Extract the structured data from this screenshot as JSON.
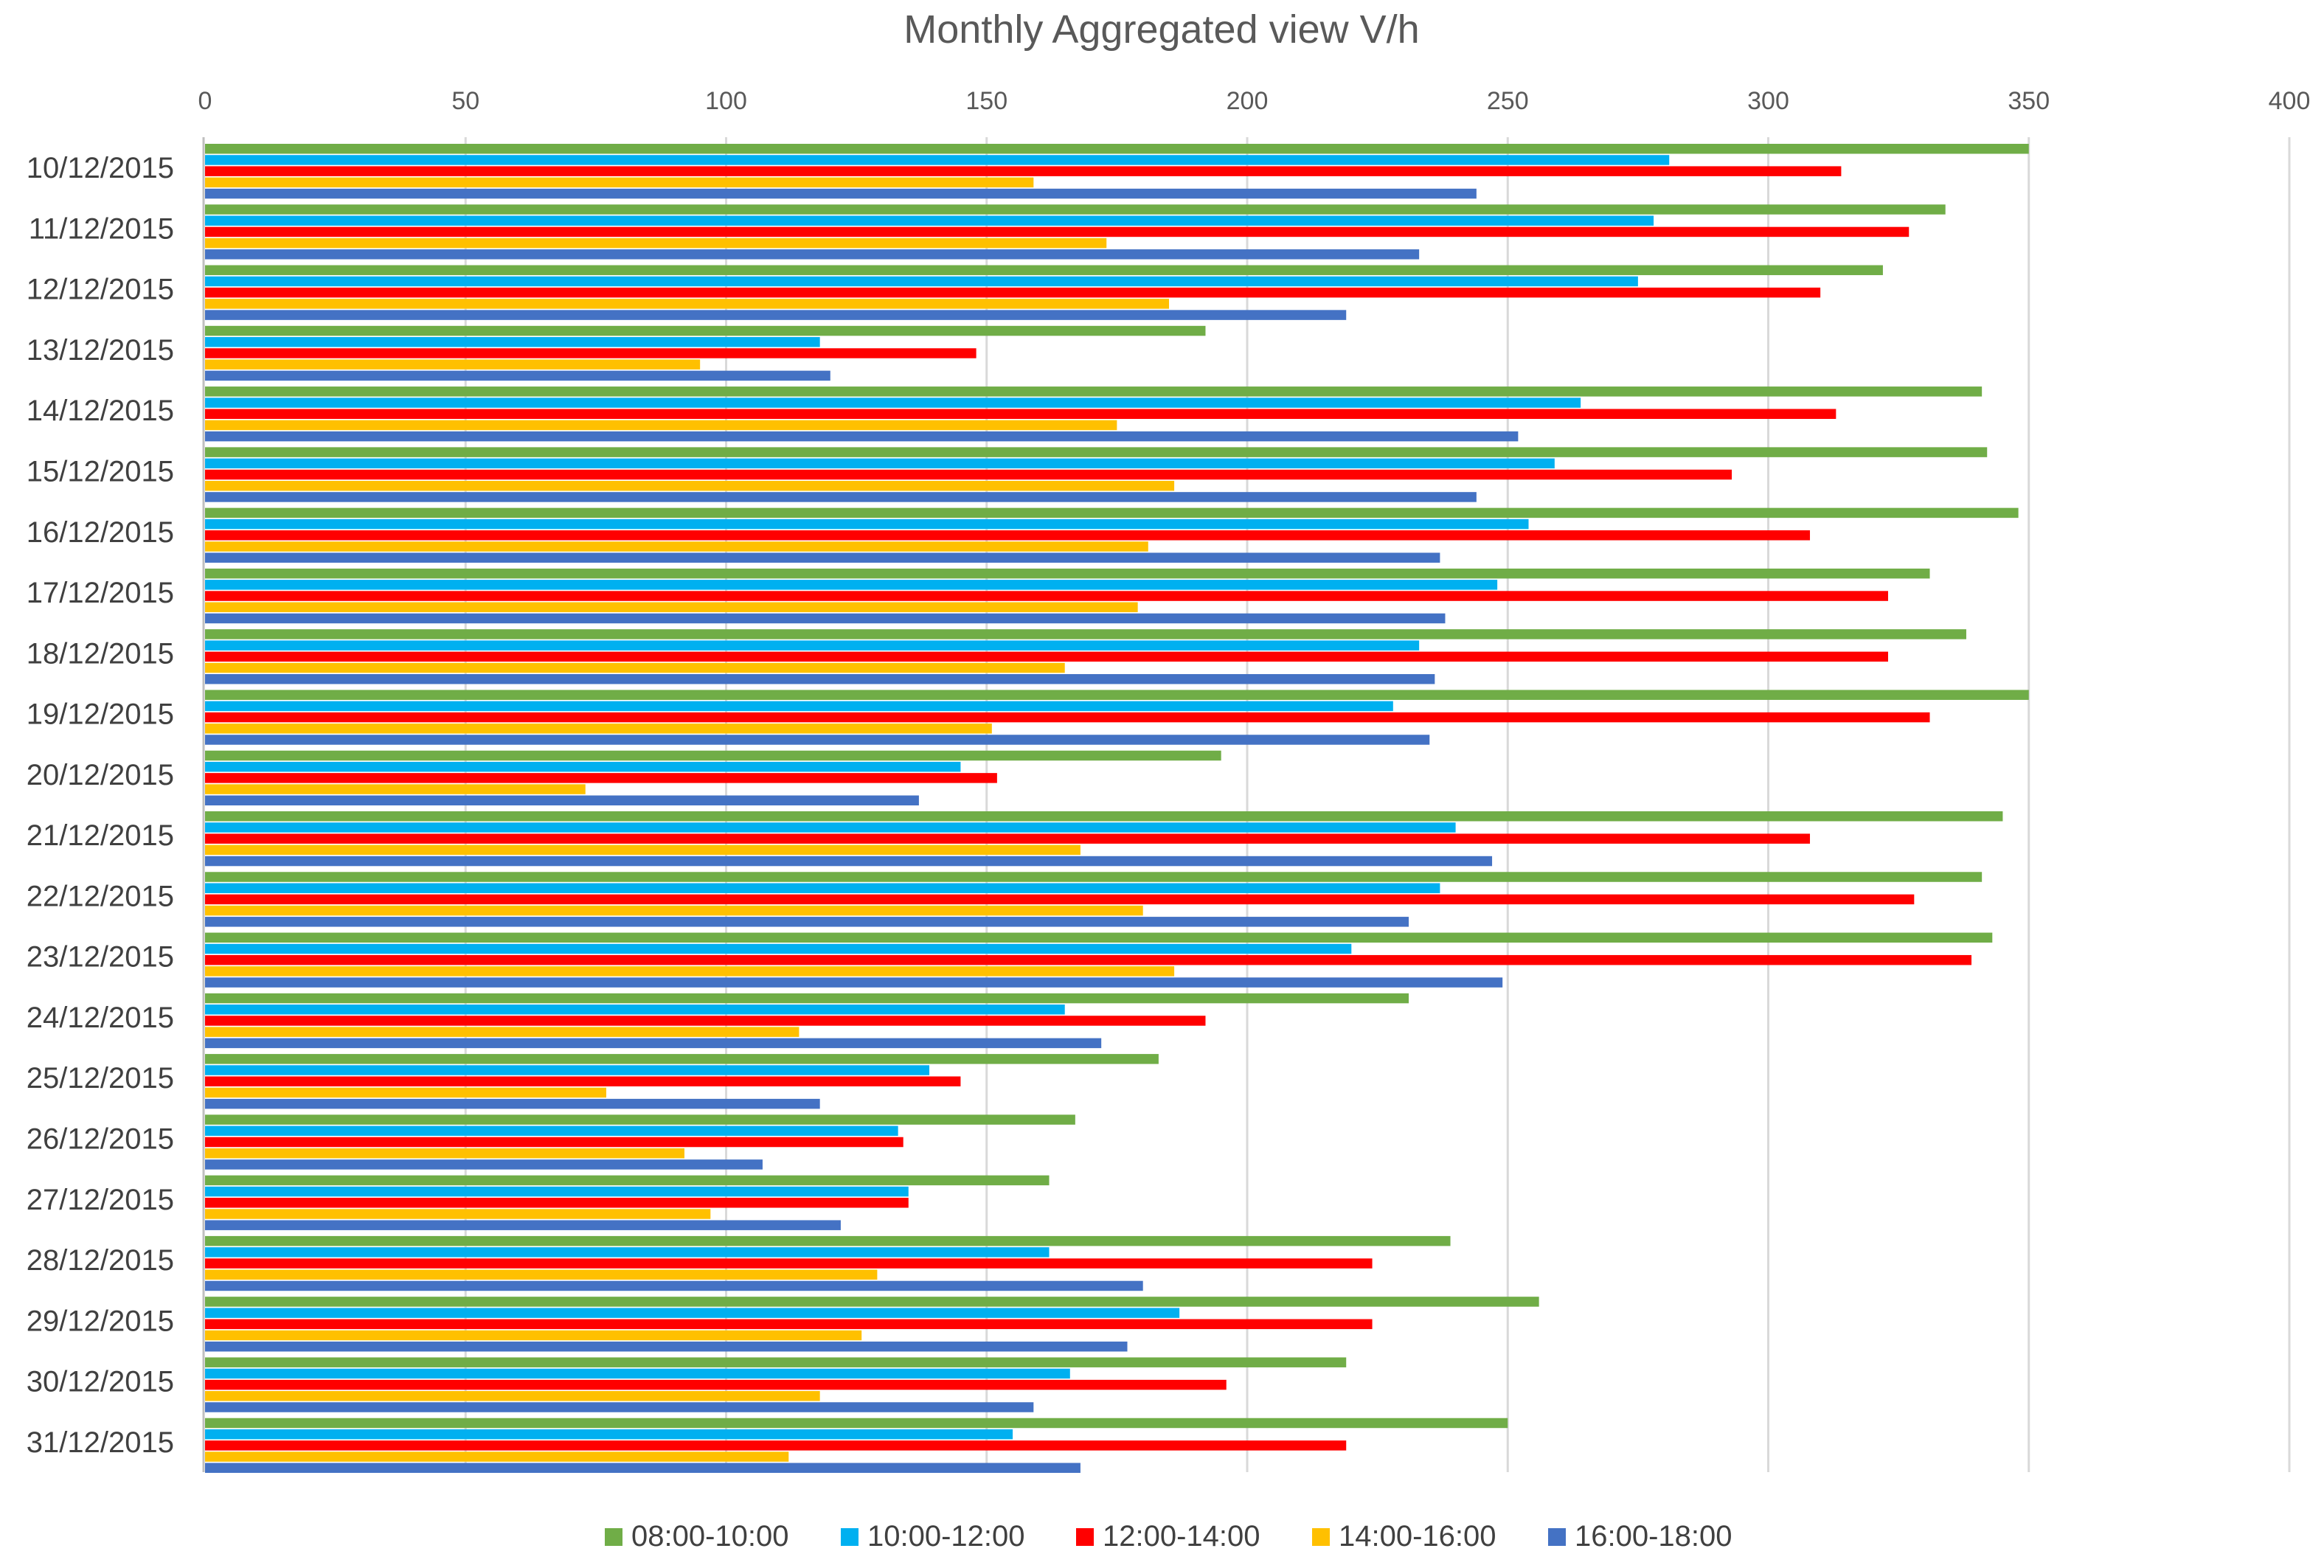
{
  "chart_data": {
    "type": "bar",
    "orientation": "horizontal",
    "title": "Monthly Aggregated view V/h",
    "xlabel": "",
    "ylabel": "",
    "xlim": [
      0,
      400
    ],
    "xticks": [
      0,
      50,
      100,
      150,
      200,
      250,
      300,
      350,
      400
    ],
    "x_axis_position": "top",
    "grid": true,
    "legend_position": "bottom",
    "categories": [
      "10/12/2015",
      "11/12/2015",
      "12/12/2015",
      "13/12/2015",
      "14/12/2015",
      "15/12/2015",
      "16/12/2015",
      "17/12/2015",
      "18/12/2015",
      "19/12/2015",
      "20/12/2015",
      "21/12/2015",
      "22/12/2015",
      "23/12/2015",
      "24/12/2015",
      "25/12/2015",
      "26/12/2015",
      "27/12/2015",
      "28/12/2015",
      "29/12/2015",
      "30/12/2015",
      "31/12/2015"
    ],
    "series": [
      {
        "name": "08:00-10:00",
        "color": "#70ad47",
        "values": [
          350,
          334,
          322,
          192,
          341,
          342,
          348,
          331,
          338,
          350,
          195,
          345,
          341,
          343,
          231,
          183,
          167,
          162,
          239,
          256,
          219,
          250
        ]
      },
      {
        "name": "10:00-12:00",
        "color": "#00b0f0",
        "values": [
          281,
          278,
          275,
          118,
          264,
          259,
          254,
          248,
          233,
          228,
          145,
          240,
          237,
          220,
          165,
          139,
          133,
          135,
          162,
          187,
          166,
          155
        ]
      },
      {
        "name": "12:00-14:00",
        "color": "#ff0000",
        "values": [
          314,
          327,
          310,
          148,
          313,
          293,
          308,
          323,
          323,
          331,
          152,
          308,
          328,
          339,
          192,
          145,
          134,
          135,
          224,
          224,
          196,
          219
        ]
      },
      {
        "name": "14:00-16:00",
        "color": "#ffc000",
        "values": [
          159,
          173,
          185,
          95,
          175,
          186,
          181,
          179,
          165,
          151,
          73,
          168,
          180,
          186,
          114,
          77,
          92,
          97,
          129,
          126,
          118,
          112
        ]
      },
      {
        "name": "16:00-18:00",
        "color": "#4472c4",
        "values": [
          244,
          233,
          219,
          120,
          252,
          244,
          237,
          238,
          236,
          235,
          137,
          247,
          231,
          249,
          172,
          118,
          107,
          122,
          180,
          177,
          159,
          168
        ]
      }
    ]
  }
}
